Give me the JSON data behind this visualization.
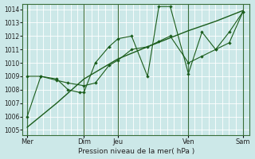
{
  "xlabel": "Pression niveau de la mer( hPa )",
  "bg_color": "#cce8e8",
  "grid_color": "#b8d8d8",
  "line_color": "#1a5c1a",
  "dark_line_color": "#2d6e2d",
  "ylim": [
    1004.6,
    1014.4
  ],
  "yticks": [
    1005,
    1006,
    1007,
    1008,
    1009,
    1010,
    1011,
    1012,
    1013,
    1014
  ],
  "xlim": [
    0,
    100
  ],
  "xtick_positions": [
    2,
    27,
    42,
    73,
    97
  ],
  "xtick_labels": [
    "Mer",
    "Dim",
    "Jeu",
    "Ven",
    "Sam"
  ],
  "vline_positions": [
    2,
    27,
    42,
    73,
    97
  ],
  "line1_x": [
    2,
    15,
    27,
    42,
    55,
    73,
    85,
    97
  ],
  "line1_y": [
    1005.2,
    1007.0,
    1008.8,
    1010.3,
    1011.2,
    1012.4,
    1013.1,
    1013.9
  ],
  "line2_x": [
    2,
    8,
    15,
    20,
    27,
    32,
    38,
    42,
    48,
    55,
    60,
    65,
    73,
    79,
    85,
    91,
    97
  ],
  "line2_y": [
    1009.0,
    1009.0,
    1008.7,
    1008.5,
    1008.3,
    1008.5,
    1009.8,
    1010.2,
    1011.0,
    1011.2,
    1011.6,
    1012.0,
    1010.0,
    1010.5,
    1011.0,
    1011.5,
    1013.8
  ],
  "line3_x": [
    2,
    8,
    15,
    20,
    25,
    27,
    32,
    38,
    42,
    48,
    55,
    60,
    65,
    73,
    79,
    85,
    91,
    97
  ],
  "line3_y": [
    1006.0,
    1009.0,
    1008.8,
    1008.0,
    1007.8,
    1007.8,
    1010.0,
    1011.2,
    1011.8,
    1012.0,
    1009.0,
    1014.2,
    1014.2,
    1009.2,
    1012.3,
    1011.0,
    1012.3,
    1013.8
  ]
}
